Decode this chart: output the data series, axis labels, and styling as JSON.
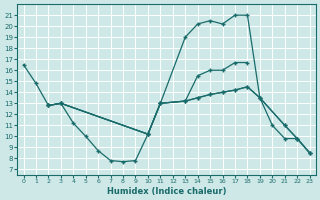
{
  "xlabel": "Humidex (Indice chaleur)",
  "bg_color": "#cde8e6",
  "line_color": "#1a6b6b",
  "grid_color": "#ffffff",
  "xlim": [
    -0.5,
    23.5
  ],
  "ylim": [
    6.5,
    22.0
  ],
  "yticks": [
    7,
    8,
    9,
    10,
    11,
    12,
    13,
    14,
    15,
    16,
    17,
    18,
    19,
    20,
    21
  ],
  "xticks": [
    0,
    1,
    2,
    3,
    4,
    5,
    6,
    7,
    8,
    9,
    10,
    11,
    12,
    13,
    14,
    15,
    16,
    17,
    18,
    19,
    20,
    21,
    22,
    23
  ],
  "lineA_x": [
    0,
    1,
    2,
    3,
    10,
    11,
    13,
    14,
    15,
    16,
    17,
    18,
    19,
    21,
    22,
    23
  ],
  "lineA_y": [
    16.5,
    14.8,
    12.8,
    13.0,
    10.2,
    13.0,
    19.0,
    20.2,
    20.5,
    20.2,
    21.0,
    21.0,
    13.5,
    11.0,
    9.8,
    8.5
  ],
  "lineB_x": [
    2,
    3,
    10,
    11,
    13,
    14,
    15,
    16,
    17,
    18
  ],
  "lineB_y": [
    12.8,
    13.0,
    10.2,
    13.0,
    13.2,
    15.5,
    16.0,
    16.0,
    16.7,
    16.7
  ],
  "lineC_x": [
    2,
    3,
    10,
    11,
    13,
    14,
    15,
    16,
    17,
    18,
    19,
    21,
    22,
    23
  ],
  "lineC_y": [
    12.8,
    13.0,
    10.2,
    13.0,
    13.2,
    13.5,
    13.8,
    14.0,
    14.2,
    14.5,
    13.5,
    11.0,
    9.8,
    8.5
  ],
  "lineD_x": [
    2,
    3,
    4,
    5,
    6,
    7,
    8,
    9,
    10,
    11,
    13,
    14,
    15,
    16,
    17,
    18,
    19,
    20,
    21,
    22,
    23
  ],
  "lineD_y": [
    12.8,
    13.0,
    11.2,
    10.0,
    8.7,
    7.8,
    7.7,
    7.8,
    10.2,
    13.0,
    13.2,
    13.5,
    13.8,
    14.0,
    14.2,
    14.5,
    13.5,
    11.0,
    9.8,
    9.8,
    8.5
  ]
}
